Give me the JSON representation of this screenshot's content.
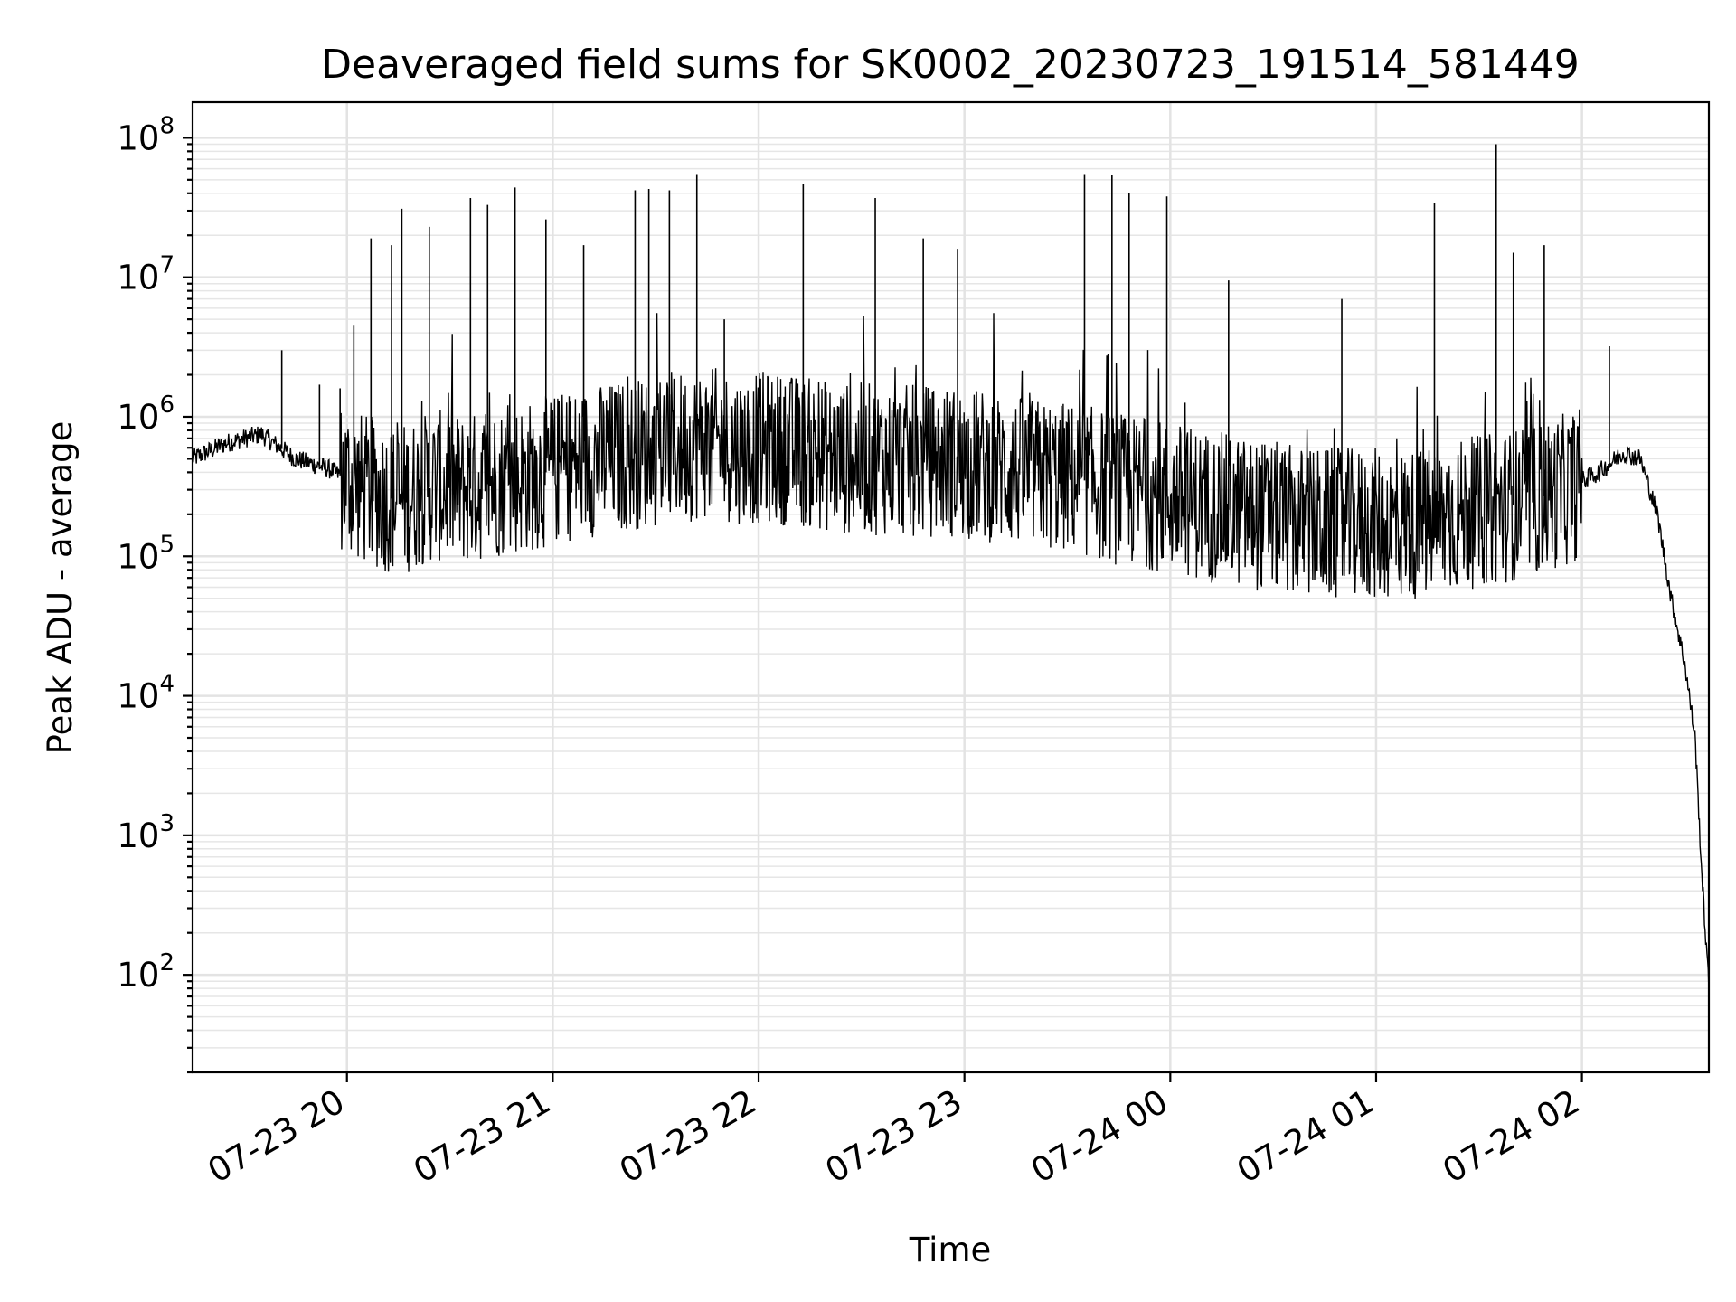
{
  "chart_data": {
    "type": "line",
    "title": "Deaveraged field sums for SK0002_20230723_191514_581449",
    "xlabel": "Time",
    "ylabel": "Peak ADU - average",
    "yscale": "log",
    "ylim": [
      20,
      180000000
    ],
    "xlim": [
      "2023-07-23 19:15",
      "2023-07-24 02:37"
    ],
    "grid": true,
    "line_color": "#000000",
    "x_ticks": [
      {
        "t": "2023-07-23 20:00",
        "label": "07-23 20"
      },
      {
        "t": "2023-07-23 21:00",
        "label": "07-23 21"
      },
      {
        "t": "2023-07-23 22:00",
        "label": "07-23 22"
      },
      {
        "t": "2023-07-23 23:00",
        "label": "07-23 23"
      },
      {
        "t": "2023-07-24 00:00",
        "label": "07-24 00"
      },
      {
        "t": "2023-07-24 01:00",
        "label": "07-24 01"
      },
      {
        "t": "2023-07-24 02:00",
        "label": "07-24 02"
      }
    ],
    "y_ticks": [
      {
        "value": 100,
        "base": "10",
        "exp": "2"
      },
      {
        "value": 1000,
        "base": "10",
        "exp": "3"
      },
      {
        "value": 10000,
        "base": "10",
        "exp": "4"
      },
      {
        "value": 100000,
        "base": "10",
        "exp": "5"
      },
      {
        "value": 1000000,
        "base": "10",
        "exp": "6"
      },
      {
        "value": 10000000,
        "base": "10",
        "exp": "7"
      },
      {
        "value": 100000000,
        "base": "10",
        "exp": "8"
      }
    ],
    "series": [
      {
        "x": [
          "2023-07-23 19:15",
          "2023-07-23 19:25",
          "2023-07-23 19:35",
          "2023-07-23 19:45",
          "2023-07-23 19:55",
          "2023-07-23 20:05",
          "2023-07-23 20:15",
          "2023-07-23 20:25",
          "2023-07-23 20:35",
          "2023-07-23 20:45",
          "2023-07-23 20:55",
          "2023-07-23 21:05",
          "2023-07-23 21:15",
          "2023-07-23 21:25",
          "2023-07-23 21:35",
          "2023-07-23 21:45",
          "2023-07-23 21:55",
          "2023-07-23 22:05",
          "2023-07-23 22:15",
          "2023-07-23 22:25",
          "2023-07-23 22:35",
          "2023-07-23 22:45",
          "2023-07-23 22:55",
          "2023-07-23 23:05",
          "2023-07-23 23:15",
          "2023-07-23 23:25",
          "2023-07-23 23:35",
          "2023-07-23 23:45",
          "2023-07-23 23:55",
          "2023-07-24 00:05",
          "2023-07-24 00:15",
          "2023-07-24 00:25",
          "2023-07-24 00:35",
          "2023-07-24 00:45",
          "2023-07-24 00:55",
          "2023-07-24 01:05",
          "2023-07-24 01:15",
          "2023-07-24 01:25",
          "2023-07-24 01:35",
          "2023-07-24 01:45",
          "2023-07-24 01:55",
          "2023-07-24 02:05",
          "2023-07-24 02:12",
          "2023-07-24 02:17",
          "2023-07-24 02:22",
          "2023-07-24 02:26",
          "2023-07-24 02:30",
          "2023-07-24 02:33",
          "2023-07-24 02:35",
          "2023-07-24 02:37"
        ],
        "y": [
          500000,
          650000,
          750000,
          500000,
          420000,
          300000,
          250000,
          320000,
          300000,
          350000,
          380000,
          450000,
          500000,
          550000,
          600000,
          650000,
          600000,
          600000,
          550000,
          500000,
          500000,
          480000,
          480000,
          450000,
          400000,
          380000,
          350000,
          300000,
          280000,
          250000,
          220000,
          200000,
          180000,
          170000,
          170000,
          170000,
          170000,
          200000,
          220000,
          250000,
          300000,
          400000,
          550000,
          500000,
          200000,
          50000,
          17000,
          5000,
          500,
          80
        ]
      }
    ],
    "spikes": [
      {
        "t": "2023-07-23 19:41",
        "y": 3000000
      },
      {
        "t": "2023-07-23 19:52",
        "y": 1700000
      },
      {
        "t": "2023-07-23 19:58",
        "y": 1600000
      },
      {
        "t": "2023-07-23 20:02",
        "y": 4500000
      },
      {
        "t": "2023-07-23 20:07",
        "y": 19000000
      },
      {
        "t": "2023-07-23 20:13",
        "y": 17000000
      },
      {
        "t": "2023-07-23 20:16",
        "y": 31000000
      },
      {
        "t": "2023-07-23 20:24",
        "y": 23000000
      },
      {
        "t": "2023-07-23 20:36",
        "y": 37000000
      },
      {
        "t": "2023-07-23 20:41",
        "y": 33000000
      },
      {
        "t": "2023-07-23 20:49",
        "y": 44000000
      },
      {
        "t": "2023-07-23 20:58",
        "y": 26000000
      },
      {
        "t": "2023-07-23 21:09",
        "y": 17000000
      },
      {
        "t": "2023-07-23 21:24",
        "y": 42000000
      },
      {
        "t": "2023-07-23 21:28",
        "y": 43000000
      },
      {
        "t": "2023-07-23 21:34",
        "y": 42000000
      },
      {
        "t": "2023-07-23 21:42",
        "y": 55000000
      },
      {
        "t": "2023-07-23 21:50",
        "y": 5000000
      },
      {
        "t": "2023-07-23 22:13",
        "y": 47000000
      },
      {
        "t": "2023-07-23 22:34",
        "y": 37000000
      },
      {
        "t": "2023-07-23 22:48",
        "y": 19000000
      },
      {
        "t": "2023-07-23 22:58",
        "y": 16000000
      },
      {
        "t": "2023-07-23 23:35",
        "y": 55000000
      },
      {
        "t": "2023-07-23 23:43",
        "y": 54000000
      },
      {
        "t": "2023-07-23 23:48",
        "y": 40000000
      },
      {
        "t": "2023-07-23 23:59",
        "y": 38000000
      },
      {
        "t": "2023-07-24 00:17",
        "y": 9500000
      },
      {
        "t": "2023-07-24 00:50",
        "y": 7000000
      },
      {
        "t": "2023-07-24 01:17",
        "y": 34000000
      },
      {
        "t": "2023-07-24 01:35",
        "y": 90000000
      },
      {
        "t": "2023-07-24 01:40",
        "y": 15000000
      },
      {
        "t": "2023-07-24 01:49",
        "y": 17000000
      },
      {
        "t": "2023-07-24 02:08",
        "y": 3200000
      }
    ]
  }
}
